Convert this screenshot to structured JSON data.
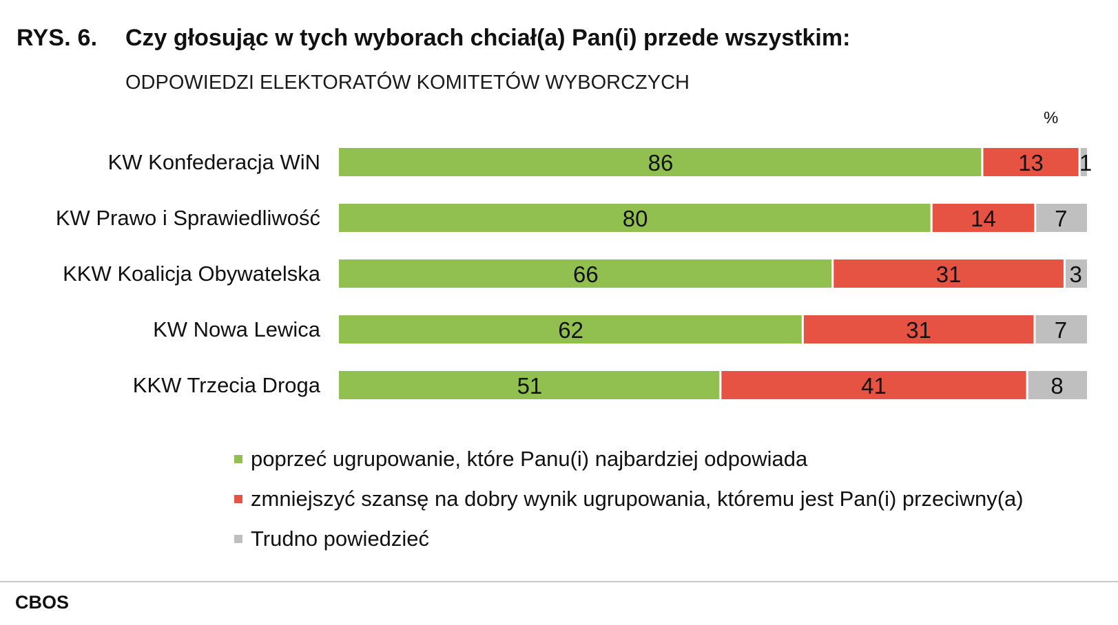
{
  "figure": {
    "label": "RYS. 6.",
    "title": "Czy głosując w tych wyborach chciał(a) Pan(i) przede wszystkim:",
    "subtitle": "ODPOWIEDZI ELEKTORATÓW KOMITETÓW WYBORCZYCH",
    "unit": "%",
    "source": "CBOS"
  },
  "chart_data": {
    "type": "bar",
    "orientation": "horizontal",
    "stacked": true,
    "title": "Czy głosując w tych wyborach chciał(a) Pan(i) przede wszystkim:",
    "subtitle": "ODPOWIEDZI ELEKTORATÓW KOMITETÓW WYBORCZYCH",
    "unit": "%",
    "categories": [
      "KW Konfederacja WiN",
      "KW Prawo i Sprawiedliwość",
      "KKW Koalicja Obywatelska",
      "KW Nowa Lewica",
      "KKW Trzecia Droga"
    ],
    "series": [
      {
        "name": "poprzeć ugrupowanie, które Panu(i) najbardziej odpowiada",
        "color": "#92c050",
        "values": [
          86,
          80,
          66,
          62,
          51
        ]
      },
      {
        "name": "zmniejszyć szansę na dobry wynik ugrupowania, któremu jest Pan(i) przeciwny(a)",
        "color": "#e65342",
        "values": [
          13,
          14,
          31,
          31,
          41
        ]
      },
      {
        "name": "Trudno powiedzieć",
        "color": "#bfbfbf",
        "values": [
          1,
          7,
          3,
          7,
          8
        ]
      }
    ],
    "xlim": [
      0,
      100
    ],
    "grid": false,
    "legend": "bottom"
  }
}
